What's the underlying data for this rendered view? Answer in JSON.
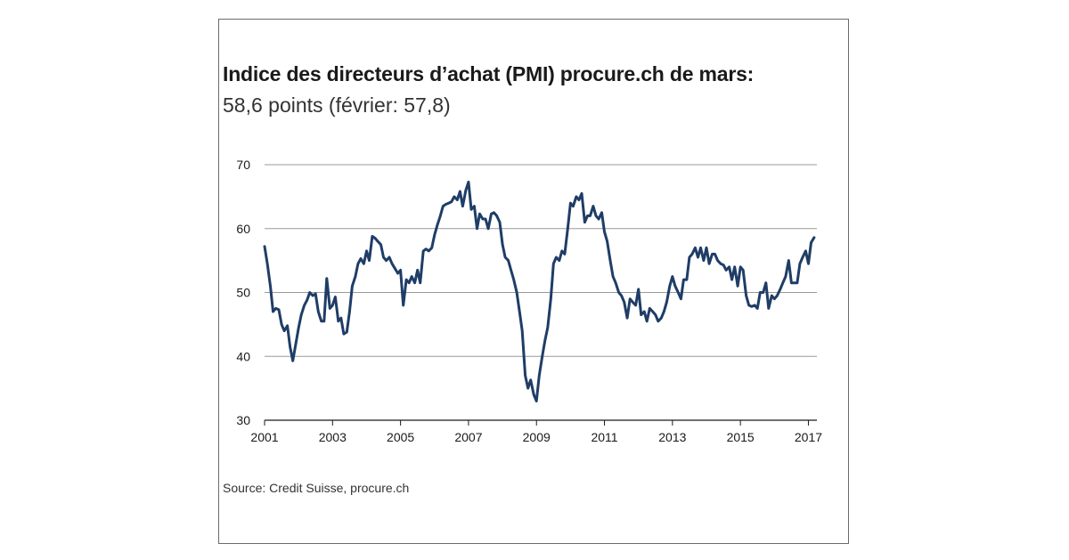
{
  "chart_data": {
    "type": "line",
    "title": "Indice des directeurs d’achat (PMI) procure.ch de mars:",
    "subtitle": "58,6 points (février: 57,8)",
    "xlabel": "",
    "ylabel": "",
    "source": "Source: Credit Suisse, procure.ch",
    "ylim": [
      30,
      70
    ],
    "y_ticks": [
      "30",
      "40",
      "50",
      "60",
      "70"
    ],
    "xlim": [
      2001.0,
      2017.25
    ],
    "x_ticks": [
      "2001",
      "2003",
      "2005",
      "2007",
      "2009",
      "2011",
      "2013",
      "2015",
      "2017"
    ],
    "grid": true,
    "line_color": "#1f3d66",
    "series": [
      {
        "x": [
          2001.0,
          2001.08,
          2001.17,
          2001.25,
          2001.33,
          2001.42,
          2001.5,
          2001.58,
          2001.67,
          2001.75,
          2001.83,
          2001.92,
          2002.0,
          2002.08,
          2002.17,
          2002.25,
          2002.33,
          2002.42,
          2002.5,
          2002.58,
          2002.67,
          2002.75,
          2002.83,
          2002.92,
          2003.0,
          2003.08,
          2003.17,
          2003.25,
          2003.33,
          2003.42,
          2003.5,
          2003.58,
          2003.67,
          2003.75,
          2003.83,
          2003.92,
          2004.0,
          2004.08,
          2004.17,
          2004.25,
          2004.33,
          2004.42,
          2004.5,
          2004.58,
          2004.67,
          2004.75,
          2004.83,
          2004.92,
          2005.0,
          2005.08,
          2005.17,
          2005.25,
          2005.33,
          2005.42,
          2005.5,
          2005.58,
          2005.67,
          2005.75,
          2005.83,
          2005.92,
          2006.0,
          2006.08,
          2006.17,
          2006.25,
          2006.33,
          2006.42,
          2006.5,
          2006.58,
          2006.67,
          2006.75,
          2006.83,
          2006.92,
          2007.0,
          2007.08,
          2007.17,
          2007.25,
          2007.33,
          2007.42,
          2007.5,
          2007.58,
          2007.67,
          2007.75,
          2007.83,
          2007.92,
          2008.0,
          2008.08,
          2008.17,
          2008.25,
          2008.33,
          2008.42,
          2008.5,
          2008.58,
          2008.67,
          2008.75,
          2008.83,
          2008.92,
          2009.0,
          2009.08,
          2009.17,
          2009.25,
          2009.33,
          2009.42,
          2009.5,
          2009.58,
          2009.67,
          2009.75,
          2009.83,
          2009.92,
          2010.0,
          2010.08,
          2010.17,
          2010.25,
          2010.33,
          2010.42,
          2010.5,
          2010.58,
          2010.67,
          2010.75,
          2010.83,
          2010.92,
          2011.0,
          2011.08,
          2011.17,
          2011.25,
          2011.33,
          2011.42,
          2011.5,
          2011.58,
          2011.67,
          2011.75,
          2011.83,
          2011.92,
          2012.0,
          2012.08,
          2012.17,
          2012.25,
          2012.33,
          2012.42,
          2012.5,
          2012.58,
          2012.67,
          2012.75,
          2012.83,
          2012.92,
          2013.0,
          2013.08,
          2013.17,
          2013.25,
          2013.33,
          2013.42,
          2013.5,
          2013.58,
          2013.67,
          2013.75,
          2013.83,
          2013.92,
          2014.0,
          2014.08,
          2014.17,
          2014.25,
          2014.33,
          2014.42,
          2014.5,
          2014.58,
          2014.67,
          2014.75,
          2014.83,
          2014.92,
          2015.0,
          2015.08,
          2015.17,
          2015.25,
          2015.33,
          2015.42,
          2015.5,
          2015.58,
          2015.67,
          2015.75,
          2015.83,
          2015.92,
          2016.0,
          2016.08,
          2016.17,
          2016.25,
          2016.33,
          2016.42,
          2016.5,
          2016.58,
          2016.67,
          2016.75,
          2016.83,
          2016.92,
          2017.0,
          2017.08,
          2017.17
        ],
        "y": [
          57.2,
          54.5,
          51.0,
          47.0,
          47.5,
          47.3,
          45.0,
          44.0,
          44.8,
          41.5,
          39.3,
          42.0,
          44.5,
          46.5,
          48.0,
          48.8,
          50.0,
          49.5,
          49.8,
          47.0,
          45.5,
          45.5,
          52.2,
          47.5,
          48.0,
          49.3,
          45.5,
          46.0,
          43.5,
          43.8,
          47.0,
          51.0,
          52.5,
          54.5,
          55.3,
          54.5,
          56.5,
          55.0,
          58.8,
          58.5,
          58.0,
          57.5,
          55.5,
          55.0,
          55.5,
          54.5,
          53.8,
          53.0,
          53.5,
          48.0,
          52.0,
          51.5,
          52.5,
          51.5,
          53.5,
          51.5,
          56.5,
          56.8,
          56.5,
          57.0,
          59.0,
          60.5,
          62.0,
          63.5,
          63.8,
          64.0,
          64.2,
          65.0,
          64.5,
          65.8,
          63.5,
          66.0,
          67.3,
          63.0,
          63.5,
          60.0,
          62.3,
          61.5,
          61.5,
          60.0,
          62.3,
          62.5,
          62.0,
          61.0,
          57.5,
          55.5,
          55.0,
          53.5,
          52.0,
          50.0,
          47.0,
          44.0,
          37.0,
          35.0,
          36.3,
          34.0,
          33.0,
          37.0,
          40.0,
          42.5,
          44.5,
          49.0,
          54.5,
          55.5,
          55.0,
          56.5,
          56.0,
          60.0,
          64.0,
          63.5,
          65.0,
          64.5,
          65.5,
          61.0,
          62.0,
          62.0,
          63.5,
          62.0,
          61.5,
          62.5,
          59.5,
          58.0,
          55.0,
          52.5,
          51.5,
          50.0,
          49.5,
          48.5,
          46.0,
          49.0,
          48.5,
          48.0,
          50.5,
          46.5,
          47.0,
          45.5,
          47.5,
          47.0,
          46.5,
          45.5,
          46.0,
          47.0,
          48.5,
          51.0,
          52.5,
          51.0,
          50.0,
          49.0,
          52.0,
          52.0,
          55.5,
          56.0,
          57.0,
          55.5,
          57.0,
          55.0,
          57.0,
          54.5,
          56.0,
          56.0,
          55.0,
          54.5,
          54.3,
          53.5,
          54.0,
          52.0,
          54.0,
          51.0,
          54.0,
          53.5,
          49.5,
          48.0,
          47.8,
          48.0,
          47.5,
          50.0,
          50.0,
          51.5,
          47.5,
          49.5,
          49.0,
          49.5,
          50.5,
          51.5,
          52.5,
          55.0,
          51.5,
          51.5,
          51.5,
          54.5,
          55.5,
          56.5,
          54.5,
          57.8,
          58.6
        ]
      }
    ]
  }
}
